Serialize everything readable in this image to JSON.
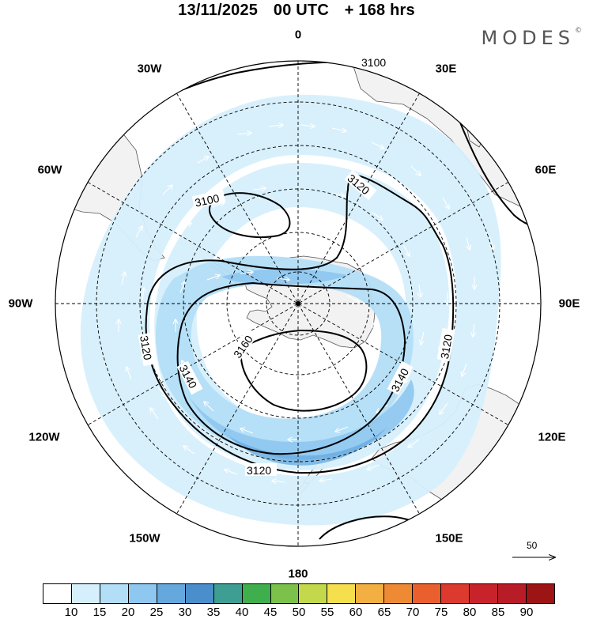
{
  "title": {
    "date": "13/11/2025",
    "time": "00 UTC",
    "lead": "+ 168 hrs"
  },
  "brand": {
    "name": "MODES",
    "mark": "©"
  },
  "longitudes": {
    "lon_0": "0",
    "lon_30e": "30E",
    "lon_60e": "60E",
    "lon_90e": "90E",
    "lon_120e": "120E",
    "lon_150e": "150E",
    "lon_180": "180",
    "lon_150w": "150W",
    "lon_120w": "120W",
    "lon_90w": "90W",
    "lon_60w": "60W",
    "lon_30w": "30W"
  },
  "contours": {
    "c3100_north": "3100",
    "c3100_west": "3100",
    "c3120_ne": "3120",
    "c3120_east": "3120",
    "c3120_west": "3120",
    "c3120_south": "3120",
    "c3140_west": "3140",
    "c3140_east": "3140",
    "c3160": "3160"
  },
  "reference_vector": {
    "value": "50"
  },
  "colorbar": {
    "labels": [
      "10",
      "15",
      "20",
      "25",
      "30",
      "35",
      "40",
      "45",
      "50",
      "55",
      "60",
      "65",
      "70",
      "75",
      "80",
      "85",
      "90"
    ],
    "colors": [
      "#ffffff",
      "#d6effc",
      "#b3def7",
      "#8ec7ef",
      "#65a8dd",
      "#4a8fcb",
      "#3f9e94",
      "#3fae4c",
      "#7cc24a",
      "#c3d94b",
      "#f5df4d",
      "#f3b042",
      "#ef8a34",
      "#e9602e",
      "#dc3a2e",
      "#c8232b",
      "#b81c26",
      "#9c1414"
    ]
  }
}
